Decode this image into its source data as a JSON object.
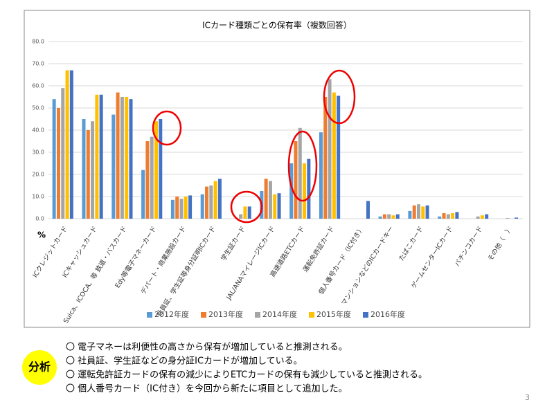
{
  "chart_data": {
    "type": "bar",
    "title": "ICカード種類ごとの保有率（複数回答）",
    "y_unit_label": "%",
    "categories": [
      "ICクレジットカード",
      "ICキャッシュカード",
      "Suica、ICOCA、等 鉄道・バスカード",
      "Edy等電子マネーカード",
      "デパート・商業施設カード",
      "社員証、学生証等身分証明ICカード",
      "学生証カード",
      "JAL/ANAマイレージICカード",
      "高速道路ETCカード",
      "運転免許証カード",
      "個人番号カード（IC付き）",
      "マンションなどのICカードキー",
      "たばこカード",
      "ゲームセンターICカード",
      "パチンコカード",
      "その他（　）"
    ],
    "series": [
      {
        "name": "2012年度",
        "color": "#5b9bd5",
        "values": [
          54,
          45,
          47,
          22,
          8.5,
          11,
          null,
          12.5,
          25,
          39,
          null,
          1,
          3.5,
          1,
          null,
          null
        ]
      },
      {
        "name": "2013年度",
        "color": "#ed7d31",
        "values": [
          50,
          40,
          57,
          35,
          10,
          14.5,
          null,
          18,
          35,
          55,
          null,
          2,
          6,
          2.5,
          null,
          null
        ]
      },
      {
        "name": "2014年度",
        "color": "#a5a5a5",
        "values": [
          59,
          44,
          55,
          37,
          9,
          15,
          2,
          17,
          41,
          63,
          null,
          2,
          6.5,
          2,
          1,
          0.3
        ]
      },
      {
        "name": "2015年度",
        "color": "#ffc000",
        "values": [
          67,
          56,
          55,
          44,
          10,
          17,
          5.5,
          11,
          25,
          57,
          null,
          1.5,
          5.5,
          2.5,
          1.5,
          null
        ]
      },
      {
        "name": "2016年度",
        "color": "#4472c4",
        "values": [
          67,
          56,
          54,
          45,
          10.5,
          18,
          5.5,
          11.5,
          27,
          55.5,
          8,
          2,
          6,
          3,
          2,
          0.5
        ]
      }
    ],
    "ylim": [
      0,
      80
    ],
    "yticks": [
      {
        "value": 0,
        "label": "0.0"
      },
      {
        "value": 10,
        "label": "10.0"
      },
      {
        "value": 20,
        "label": "20.0"
      },
      {
        "value": 30,
        "label": "30.0"
      },
      {
        "value": 40,
        "label": "40.0"
      },
      {
        "value": 50,
        "label": "50.0"
      },
      {
        "value": 60,
        "label": "60.0"
      },
      {
        "value": 70,
        "label": "70.0"
      },
      {
        "value": 80,
        "label": "80.0"
      }
    ],
    "grid": true,
    "legend": "bottom"
  },
  "analysis": {
    "badge": "分析",
    "lines": [
      "〇 電子マネーは利便性の高さから保有が増加していると推測される。",
      "〇 社員証、学生証などの身分証ICカードが増加している。",
      "〇 運転免許証カードの保有の減少によりETCカードの保有も減少していると推測される。",
      "〇 個人番号カード（IC付き）を今回から新たに項目として追加した。"
    ]
  },
  "page_number": "3"
}
